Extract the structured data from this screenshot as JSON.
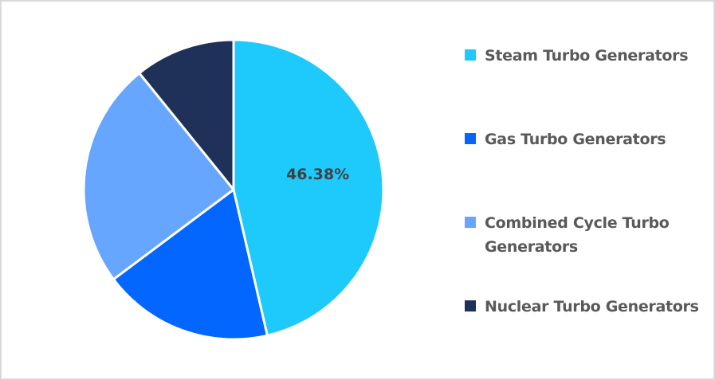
{
  "chart_data": {
    "type": "pie",
    "title": "",
    "categories": [
      "Steam Turbo Generators",
      "Gas Turbo Generators",
      "Combined Cycle Turbo Generators",
      "Nuclear Turbo Generators"
    ],
    "values": [
      46.38,
      18.4,
      24.4,
      10.82
    ],
    "colors": [
      "#1ec9fb",
      "#0266ff",
      "#67a6fe",
      "#1f3158"
    ],
    "data_labels": [
      "46.38%",
      "",
      "",
      ""
    ],
    "start_angle_deg": 0,
    "direction": "clockwise",
    "legend_position": "right"
  },
  "legend": {
    "items": [
      {
        "label": "Steam Turbo Generators",
        "color": "#1ec9fb"
      },
      {
        "label": "Gas Turbo Generators",
        "color": "#0266ff"
      },
      {
        "label": "Combined Cycle Turbo Generators",
        "color": "#67a6fe"
      },
      {
        "label": "Nuclear Turbo Generators",
        "color": "#1f3158"
      }
    ]
  },
  "labels": {
    "steam_pct": "46.38%"
  }
}
